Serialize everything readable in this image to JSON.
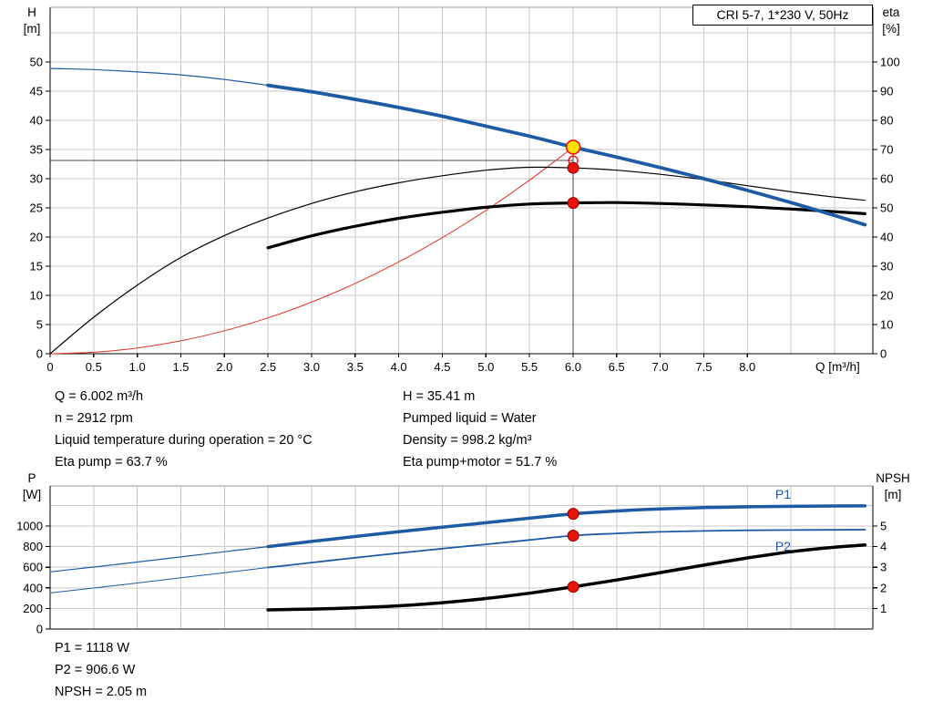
{
  "title_box": {
    "label": "CRI 5-7, 1*230 V, 50Hz"
  },
  "colors": {
    "blue": "#1d5ba4",
    "black": "#000000",
    "red": "#e03428",
    "grid": "#c9c9c9",
    "frame": "#9a9a9a",
    "axis": "#000000",
    "crosshair": "#4a4a4a",
    "marker_red": "#e8140a",
    "marker_red_edge": "#8e0000",
    "duty_yellow": "#ffe100"
  },
  "info_panel": {
    "left": [
      "Q = 6.002 m³/h",
      "n = 2912 rpm",
      "Liquid temperature during operation = 20 °C",
      "Eta pump = 63.7 %"
    ],
    "right": [
      "H = 35.41 m",
      "Pumped liquid = Water",
      "Density = 998.2 kg/m³",
      "Eta pump+motor = 51.7 %"
    ]
  },
  "power_panel": {
    "lines": [
      "P1 = 1118 W",
      "P2 = 906.6 W",
      "NPSH = 2.05 m"
    ]
  },
  "chart_data": [
    {
      "name": "hq-eta-chart",
      "type": "line",
      "title": "CRI 5-7, 1*230 V, 50Hz",
      "x_axis": {
        "label": "Q [m³/h]",
        "min": 0,
        "max": 9.44,
        "tick_values": [
          0,
          0.5,
          1,
          1.5,
          2,
          2.5,
          3,
          3.5,
          4,
          4.5,
          5,
          5.5,
          6,
          6.5,
          7,
          7.5,
          8
        ],
        "tick_labels": [
          "0",
          "0.5",
          "1.0",
          "1.5",
          "2.0",
          "2.5",
          "3.0",
          "3.5",
          "4.0",
          "4.5",
          "5.0",
          "5.5",
          "6.0",
          "6.5",
          "7.0",
          "7.5",
          "8.0"
        ],
        "grid_values": [
          0.5,
          1,
          1.5,
          2,
          2.5,
          3,
          3.5,
          4,
          4.5,
          5,
          5.5,
          6,
          6.5,
          7,
          7.5,
          8,
          8.5,
          9
        ]
      },
      "left_axis": {
        "title": [
          "H",
          "[m]"
        ],
        "min": 0,
        "max": 59.375,
        "tick_values": [
          0,
          5,
          10,
          15,
          20,
          25,
          30,
          35,
          40,
          45,
          50
        ],
        "tick_labels": [
          "0",
          "5",
          "10",
          "15",
          "20",
          "25",
          "30",
          "35",
          "40",
          "45",
          "50"
        ],
        "grid_values": [
          5,
          10,
          15,
          20,
          25,
          30,
          35,
          40,
          45,
          50,
          55
        ]
      },
      "right_axis": {
        "title": [
          "eta",
          "[%]"
        ],
        "to_left_factor": 0.5,
        "tick_values": [
          0,
          10,
          20,
          30,
          40,
          50,
          60,
          70,
          80,
          90,
          100
        ],
        "tick_labels": [
          "0",
          "10",
          "20",
          "30",
          "40",
          "50",
          "60",
          "70",
          "80",
          "90",
          "100"
        ]
      },
      "crosshair": {
        "q": 6.002,
        "h": 33.1,
        "v_top": 35.41
      },
      "series": [
        {
          "name": "system-curve",
          "axis": "left",
          "color": "red",
          "width": 1,
          "points": [
            [
              0,
              0
            ],
            [
              0.5,
              0.25
            ],
            [
              1,
              0.98
            ],
            [
              1.5,
              2.21
            ],
            [
              2,
              3.93
            ],
            [
              2.5,
              6.14
            ],
            [
              3,
              8.85
            ],
            [
              3.5,
              12.04
            ],
            [
              4,
              15.73
            ],
            [
              4.5,
              19.9
            ],
            [
              5,
              24.57
            ],
            [
              5.5,
              29.73
            ],
            [
              6.002,
              35.41
            ]
          ]
        },
        {
          "name": "eta-pump-curve",
          "axis": "right",
          "color": "black",
          "width": 1.2,
          "points": [
            [
              0,
              0
            ],
            [
              0.5,
              12.5
            ],
            [
              1,
              23.5
            ],
            [
              1.5,
              33
            ],
            [
              2,
              40.5
            ],
            [
              2.5,
              46.5
            ],
            [
              3,
              51.5
            ],
            [
              3.5,
              55.5
            ],
            [
              4,
              58.6
            ],
            [
              4.5,
              61
            ],
            [
              5,
              62.9
            ],
            [
              5.5,
              63.9
            ],
            [
              6.002,
              63.7
            ],
            [
              6.5,
              62.9
            ],
            [
              7,
              61.5
            ],
            [
              7.5,
              59.7
            ],
            [
              8,
              57.6
            ],
            [
              8.5,
              55.5
            ],
            [
              9,
              53.7
            ],
            [
              9.35,
              52.6
            ]
          ]
        },
        {
          "name": "eta-pump-motor-curve",
          "axis": "right",
          "color": "black",
          "width": 3.2,
          "points": [
            [
              2.5,
              36.3
            ],
            [
              3,
              40.4
            ],
            [
              3.5,
              43.7
            ],
            [
              4,
              46.4
            ],
            [
              4.5,
              48.5
            ],
            [
              5,
              50.2
            ],
            [
              5.5,
              51.3
            ],
            [
              6.002,
              51.7
            ],
            [
              6.5,
              51.8
            ],
            [
              7,
              51.5
            ],
            [
              7.5,
              51
            ],
            [
              8,
              50.4
            ],
            [
              8.5,
              49.6
            ],
            [
              9,
              48.7
            ],
            [
              9.35,
              48
            ]
          ]
        },
        {
          "name": "pump-head-curve",
          "axis": "left",
          "color": "blue",
          "width": 3.8,
          "thin_until": 2.5,
          "thin_width": 1.2,
          "points": [
            [
              0,
              48.9
            ],
            [
              0.5,
              48.7
            ],
            [
              1,
              48.3
            ],
            [
              1.5,
              47.8
            ],
            [
              2,
              47
            ],
            [
              2.5,
              46
            ],
            [
              3,
              44.9
            ],
            [
              3.5,
              43.6
            ],
            [
              4,
              42.2
            ],
            [
              4.5,
              40.7
            ],
            [
              5,
              39
            ],
            [
              5.5,
              37.3
            ],
            [
              6.002,
              35.41
            ],
            [
              6.5,
              33.7
            ],
            [
              7,
              31.9
            ],
            [
              7.5,
              30
            ],
            [
              8,
              28
            ],
            [
              8.5,
              25.9
            ],
            [
              9,
              23.7
            ],
            [
              9.35,
              22.1
            ]
          ]
        }
      ],
      "curve_labels": [],
      "markers": [
        {
          "name": "requested-duty-point-marker",
          "type": "open",
          "axis": "left",
          "q": 6.002,
          "v": 33.1
        },
        {
          "name": "duty-point-head-marker",
          "type": "duty",
          "axis": "left",
          "q": 6.002,
          "v": 35.41
        },
        {
          "name": "duty-point-eta-pump-marker",
          "type": "dot",
          "axis": "right",
          "q": 6.002,
          "v": 63.7
        },
        {
          "name": "duty-point-eta-pump-motor-marker",
          "type": "dot",
          "axis": "right",
          "q": 6.002,
          "v": 51.7
        }
      ]
    },
    {
      "name": "power-npsh-chart",
      "type": "line",
      "title": "",
      "x_axis": {
        "label": "",
        "min": 0,
        "max": 9.44,
        "tick_values": [],
        "tick_labels": null,
        "grid_values": [
          0.5,
          1,
          1.5,
          2,
          2.5,
          3,
          3.5,
          4,
          4.5,
          5,
          5.5,
          6,
          6.5,
          7,
          7.5,
          8,
          8.5,
          9
        ]
      },
      "left_axis": {
        "title": [
          "P",
          "[W]"
        ],
        "min": 0,
        "max": 1389,
        "tick_values": [
          0,
          200,
          400,
          600,
          800,
          1000
        ],
        "tick_labels": [
          "0",
          "200",
          "400",
          "600",
          "800",
          "1000"
        ],
        "grid_values": [
          200,
          400,
          600,
          800,
          1000,
          1200
        ]
      },
      "right_axis": {
        "title": [
          "NPSH",
          "[m]"
        ],
        "to_left_factor": 200,
        "tick_values": [
          1,
          2,
          3,
          4,
          5
        ],
        "tick_labels": [
          "1",
          "2",
          "3",
          "4",
          "5"
        ]
      },
      "crosshair": null,
      "series": [
        {
          "name": "p1-power-curve",
          "axis": "left",
          "color": "blue",
          "width": 3.5,
          "thin_until": 2.5,
          "thin_width": 1.2,
          "points": [
            [
              0,
              555
            ],
            [
              0.5,
              602
            ],
            [
              1,
              650
            ],
            [
              1.5,
              700
            ],
            [
              2,
              750
            ],
            [
              2.5,
              800
            ],
            [
              3,
              850
            ],
            [
              3.5,
              898
            ],
            [
              4,
              944
            ],
            [
              4.5,
              988
            ],
            [
              5,
              1032
            ],
            [
              5.5,
              1076
            ],
            [
              6.002,
              1118
            ],
            [
              6.5,
              1146
            ],
            [
              7,
              1165
            ],
            [
              7.5,
              1178
            ],
            [
              8,
              1186
            ],
            [
              8.5,
              1191
            ],
            [
              9,
              1194
            ],
            [
              9.35,
              1195
            ]
          ]
        },
        {
          "name": "p2-power-curve",
          "axis": "left",
          "color": "blue",
          "width": 1.8,
          "thin_until": 2.5,
          "thin_width": 1,
          "points": [
            [
              0,
              350
            ],
            [
              0.5,
              398
            ],
            [
              1,
              447
            ],
            [
              1.5,
              497
            ],
            [
              2,
              547
            ],
            [
              2.5,
              597
            ],
            [
              3,
              645
            ],
            [
              3.5,
              692
            ],
            [
              4,
              737
            ],
            [
              4.5,
              780
            ],
            [
              5,
              822
            ],
            [
              5.5,
              864
            ],
            [
              6.002,
              906.6
            ],
            [
              6.5,
              928
            ],
            [
              7,
              943
            ],
            [
              7.5,
              952
            ],
            [
              8,
              958
            ],
            [
              8.5,
              961
            ],
            [
              9,
              963
            ],
            [
              9.35,
              964
            ]
          ]
        },
        {
          "name": "npsh-curve",
          "axis": "right",
          "color": "black",
          "width": 3.5,
          "points": [
            [
              2.5,
              0.93
            ],
            [
              3,
              0.97
            ],
            [
              3.5,
              1.03
            ],
            [
              4,
              1.13
            ],
            [
              4.5,
              1.28
            ],
            [
              5,
              1.48
            ],
            [
              5.5,
              1.74
            ],
            [
              6.002,
              2.05
            ],
            [
              6.5,
              2.38
            ],
            [
              7,
              2.74
            ],
            [
              7.5,
              3.1
            ],
            [
              8,
              3.45
            ],
            [
              8.5,
              3.75
            ],
            [
              9,
              3.97
            ],
            [
              9.35,
              4.08
            ]
          ]
        }
      ],
      "curve_labels": [
        {
          "name": "p1-curve-label",
          "text": "P1",
          "axis": "left",
          "q": 8.32,
          "v": 1265,
          "color": "blue"
        },
        {
          "name": "p2-curve-label",
          "text": "P2",
          "axis": "left",
          "q": 8.32,
          "v": 760,
          "color": "blue"
        }
      ],
      "markers": [
        {
          "name": "duty-point-p1-marker",
          "type": "dot",
          "axis": "left",
          "q": 6.002,
          "v": 1118
        },
        {
          "name": "duty-point-p2-marker",
          "type": "dot",
          "axis": "left",
          "q": 6.002,
          "v": 906.6
        },
        {
          "name": "duty-point-npsh-marker",
          "type": "dot",
          "axis": "right",
          "q": 6.002,
          "v": 2.05
        }
      ]
    }
  ]
}
